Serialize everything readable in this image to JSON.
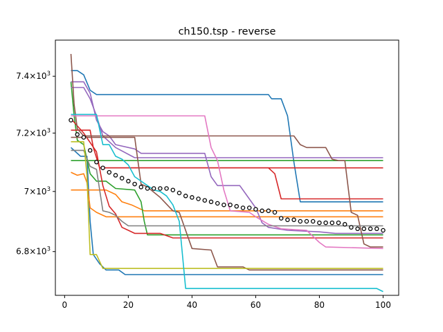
{
  "chart_data": {
    "type": "line",
    "title": "ch150.tsp - reverse",
    "xlabel": "",
    "ylabel": "",
    "xlim": [
      -2.9,
      104.9
    ],
    "ylim": [
      6658,
      7530
    ],
    "yscale": "log",
    "grid": false,
    "legend": "none",
    "x_ticks": [
      {
        "value": 0,
        "label": "0"
      },
      {
        "value": 20,
        "label": "20"
      },
      {
        "value": 40,
        "label": "40"
      },
      {
        "value": 60,
        "label": "60"
      },
      {
        "value": 80,
        "label": "80"
      },
      {
        "value": 100,
        "label": "100"
      }
    ],
    "y_ticks": [
      {
        "value": 6800,
        "label": "6.8",
        "exp": "3"
      },
      {
        "value": 7000,
        "label": "7",
        "exp": "3"
      },
      {
        "value": 7200,
        "label": "7.2",
        "exp": "3"
      },
      {
        "value": 7400,
        "label": "7.4",
        "exp": "3"
      }
    ],
    "series": [
      {
        "color": "#1f77b4",
        "points": [
          [
            2,
            7420
          ],
          [
            4,
            7420
          ],
          [
            6,
            7405
          ],
          [
            8,
            7350
          ],
          [
            10,
            7335
          ],
          [
            64,
            7335
          ],
          [
            65,
            7320
          ],
          [
            68,
            7320
          ],
          [
            70,
            7260
          ],
          [
            72,
            7100
          ],
          [
            74,
            6965
          ],
          [
            100,
            6965
          ]
        ]
      },
      {
        "color": "#1f77b4",
        "points": [
          [
            2,
            7150
          ],
          [
            5,
            7120
          ],
          [
            7,
            7120
          ],
          [
            8,
            6900
          ],
          [
            9,
            6790
          ],
          [
            11,
            6760
          ],
          [
            13,
            6740
          ],
          [
            17,
            6740
          ],
          [
            19,
            6725
          ],
          [
            100,
            6725
          ]
        ]
      },
      {
        "color": "#ff7f0e",
        "points": [
          [
            2,
            7065
          ],
          [
            4,
            7055
          ],
          [
            6,
            7060
          ],
          [
            7,
            7030
          ],
          [
            8,
            6945
          ],
          [
            10,
            6930
          ],
          [
            13,
            6915
          ],
          [
            100,
            6915
          ]
        ]
      },
      {
        "color": "#ff7f0e",
        "points": [
          [
            2,
            7005
          ],
          [
            13,
            7005
          ],
          [
            16,
            6990
          ],
          [
            18,
            6965
          ],
          [
            21,
            6955
          ],
          [
            25,
            6935
          ],
          [
            100,
            6935
          ]
        ]
      },
      {
        "color": "#2ca02c",
        "points": [
          [
            2,
            7380
          ],
          [
            3,
            7260
          ],
          [
            4,
            7175
          ],
          [
            6,
            7160
          ],
          [
            8,
            7060
          ],
          [
            10,
            7035
          ],
          [
            13,
            7035
          ],
          [
            16,
            7010
          ],
          [
            22,
            7005
          ],
          [
            24,
            6965
          ],
          [
            25,
            6900
          ],
          [
            26,
            6855
          ],
          [
            100,
            6855
          ]
        ]
      },
      {
        "color": "#2ca02c",
        "points": [
          [
            2,
            7105
          ],
          [
            100,
            7105
          ]
        ]
      },
      {
        "color": "#d62728",
        "points": [
          [
            2,
            7210
          ],
          [
            8,
            7210
          ],
          [
            9,
            7150
          ],
          [
            11,
            7080
          ],
          [
            100,
            7080
          ]
        ]
      },
      {
        "color": "#d62728",
        "points": [
          [
            2,
            7250
          ],
          [
            6,
            7200
          ],
          [
            10,
            7135
          ],
          [
            12,
            7020
          ],
          [
            14,
            6950
          ],
          [
            16,
            6925
          ],
          [
            18,
            6880
          ],
          [
            20,
            6870
          ],
          [
            22,
            6860
          ],
          [
            30,
            6860
          ],
          [
            34,
            6845
          ],
          [
            100,
            6845
          ]
        ]
      },
      {
        "color": "#d62728",
        "points": [
          [
            11,
            7080
          ],
          [
            64,
            7080
          ],
          [
            66,
            7060
          ],
          [
            68,
            6975
          ],
          [
            100,
            6975
          ]
        ]
      },
      {
        "color": "#9467bd",
        "points": [
          [
            2,
            7360
          ],
          [
            6,
            7360
          ],
          [
            8,
            7320
          ],
          [
            10,
            7260
          ],
          [
            12,
            7190
          ],
          [
            16,
            7150
          ],
          [
            22,
            7115
          ],
          [
            100,
            7115
          ]
        ]
      },
      {
        "color": "#9467bd",
        "points": [
          [
            2,
            7380
          ],
          [
            6,
            7380
          ],
          [
            8,
            7340
          ],
          [
            10,
            7245
          ],
          [
            12,
            7205
          ],
          [
            14,
            7190
          ],
          [
            16,
            7160
          ],
          [
            22,
            7145
          ],
          [
            24,
            7130
          ],
          [
            44,
            7130
          ],
          [
            46,
            7050
          ],
          [
            48,
            7020
          ],
          [
            55,
            7020
          ],
          [
            57,
            6990
          ],
          [
            60,
            6945
          ],
          [
            62,
            6895
          ],
          [
            64,
            6880
          ],
          [
            70,
            6870
          ],
          [
            80,
            6865
          ],
          [
            85,
            6860
          ],
          [
            100,
            6860
          ]
        ]
      },
      {
        "color": "#8c564b",
        "points": [
          [
            2,
            7480
          ],
          [
            3,
            7300
          ],
          [
            4,
            7215
          ],
          [
            6,
            7190
          ],
          [
            8,
            7190
          ],
          [
            72,
            7190
          ],
          [
            74,
            7160
          ],
          [
            76,
            7150
          ],
          [
            82,
            7150
          ],
          [
            84,
            7110
          ],
          [
            86,
            7105
          ],
          [
            88,
            7105
          ],
          [
            90,
            6930
          ],
          [
            92,
            6920
          ],
          [
            94,
            6825
          ],
          [
            96,
            6815
          ],
          [
            100,
            6815
          ]
        ]
      },
      {
        "color": "#8c564b",
        "points": [
          [
            2,
            7185
          ],
          [
            22,
            7185
          ],
          [
            24,
            7025
          ],
          [
            26,
            7015
          ],
          [
            30,
            6980
          ],
          [
            34,
            6935
          ],
          [
            36,
            6930
          ],
          [
            40,
            6810
          ],
          [
            46,
            6805
          ],
          [
            48,
            6750
          ],
          [
            56,
            6750
          ],
          [
            58,
            6740
          ],
          [
            100,
            6740
          ]
        ]
      },
      {
        "color": "#e377c2",
        "points": [
          [
            2,
            7260
          ],
          [
            44,
            7260
          ],
          [
            46,
            7150
          ],
          [
            48,
            7105
          ],
          [
            50,
            7005
          ],
          [
            52,
            6935
          ],
          [
            58,
            6930
          ],
          [
            60,
            6915
          ],
          [
            64,
            6890
          ],
          [
            68,
            6875
          ],
          [
            76,
            6870
          ],
          [
            80,
            6830
          ],
          [
            82,
            6815
          ],
          [
            100,
            6810
          ]
        ]
      },
      {
        "color": "#7f7f7f",
        "points": [
          [
            2,
            7140
          ],
          [
            6,
            7140
          ],
          [
            8,
            7085
          ],
          [
            10,
            7075
          ],
          [
            12,
            6935
          ],
          [
            14,
            6930
          ],
          [
            16,
            6920
          ],
          [
            18,
            6900
          ],
          [
            20,
            6885
          ],
          [
            100,
            6885
          ]
        ]
      },
      {
        "color": "#bcbd22",
        "points": [
          [
            2,
            7170
          ],
          [
            6,
            7170
          ],
          [
            7,
            7055
          ],
          [
            8,
            6790
          ],
          [
            10,
            6790
          ],
          [
            12,
            6745
          ],
          [
            100,
            6745
          ]
        ]
      },
      {
        "color": "#17becf",
        "points": [
          [
            2,
            7265
          ],
          [
            10,
            7265
          ],
          [
            12,
            7160
          ],
          [
            14,
            7160
          ],
          [
            16,
            7120
          ],
          [
            18,
            7110
          ],
          [
            20,
            7090
          ],
          [
            22,
            7050
          ],
          [
            24,
            7035
          ],
          [
            28,
            7005
          ],
          [
            30,
            7000
          ],
          [
            32,
            6985
          ],
          [
            34,
            6955
          ],
          [
            36,
            6900
          ],
          [
            38,
            6680
          ],
          [
            98,
            6680
          ],
          [
            100,
            6670
          ]
        ]
      }
    ],
    "markers": {
      "edgecolor": "#000000",
      "facecolor": "#ffffff",
      "x": [
        2,
        4,
        6,
        8,
        10,
        12,
        14,
        16,
        18,
        20,
        22,
        24,
        26,
        28,
        30,
        32,
        34,
        36,
        38,
        40,
        42,
        44,
        46,
        48,
        50,
        52,
        54,
        56,
        58,
        60,
        62,
        64,
        66,
        68,
        70,
        72,
        74,
        76,
        78,
        80,
        82,
        84,
        86,
        88,
        90,
        92,
        94,
        96,
        98,
        100
      ],
      "y": [
        7245,
        7195,
        7185,
        7140,
        7100,
        7080,
        7065,
        7055,
        7045,
        7035,
        7025,
        7015,
        7010,
        7010,
        7010,
        7010,
        7005,
        6995,
        6985,
        6980,
        6975,
        6970,
        6965,
        6960,
        6955,
        6955,
        6950,
        6945,
        6945,
        6940,
        6935,
        6935,
        6930,
        6910,
        6905,
        6905,
        6900,
        6900,
        6900,
        6895,
        6895,
        6895,
        6895,
        6890,
        6880,
        6875,
        6875,
        6875,
        6875,
        6870
      ]
    }
  }
}
